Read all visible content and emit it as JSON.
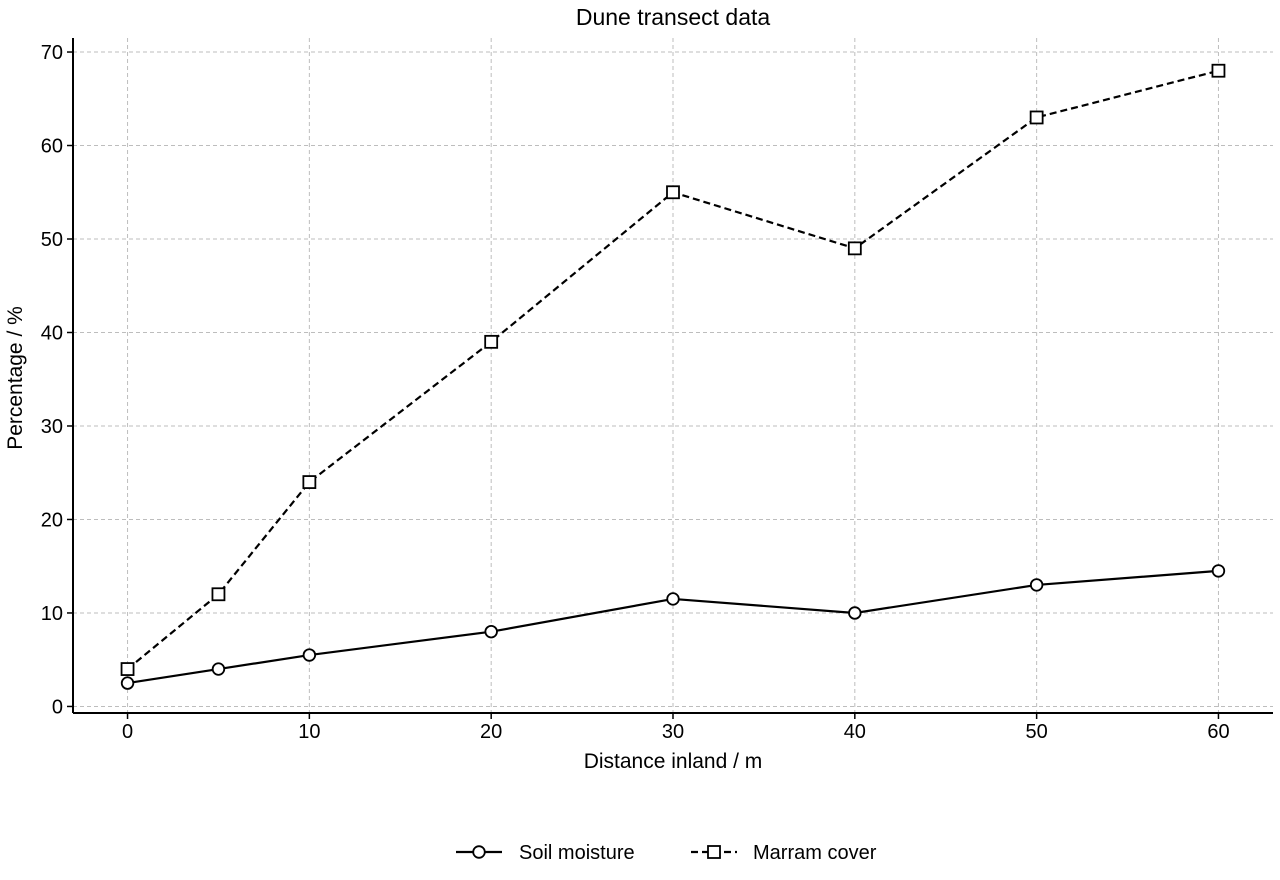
{
  "chart_data": {
    "type": "line",
    "title": "Dune transect data",
    "xlabel": "Distance inland / m",
    "ylabel": "Percentage / %",
    "x": [
      0,
      5,
      10,
      20,
      30,
      40,
      50,
      60
    ],
    "xlim": [
      -3,
      63
    ],
    "ylim": [
      -0.7,
      71.5
    ],
    "xticks": [
      0,
      10,
      20,
      30,
      40,
      50,
      60
    ],
    "yticks": [
      0,
      10,
      20,
      30,
      40,
      50,
      60,
      70
    ],
    "grid": true,
    "legend_position": "bottom-center",
    "series": [
      {
        "name": "Soil moisture",
        "values": [
          2.5,
          4,
          5.5,
          8,
          11.5,
          10,
          13,
          14.5
        ],
        "marker": "circle",
        "line_style": "solid",
        "color": "#000000"
      },
      {
        "name": "Marram cover",
        "values": [
          4,
          12,
          24,
          39,
          55,
          49,
          63,
          68
        ],
        "marker": "square",
        "line_style": "dashed",
        "color": "#000000"
      }
    ]
  }
}
